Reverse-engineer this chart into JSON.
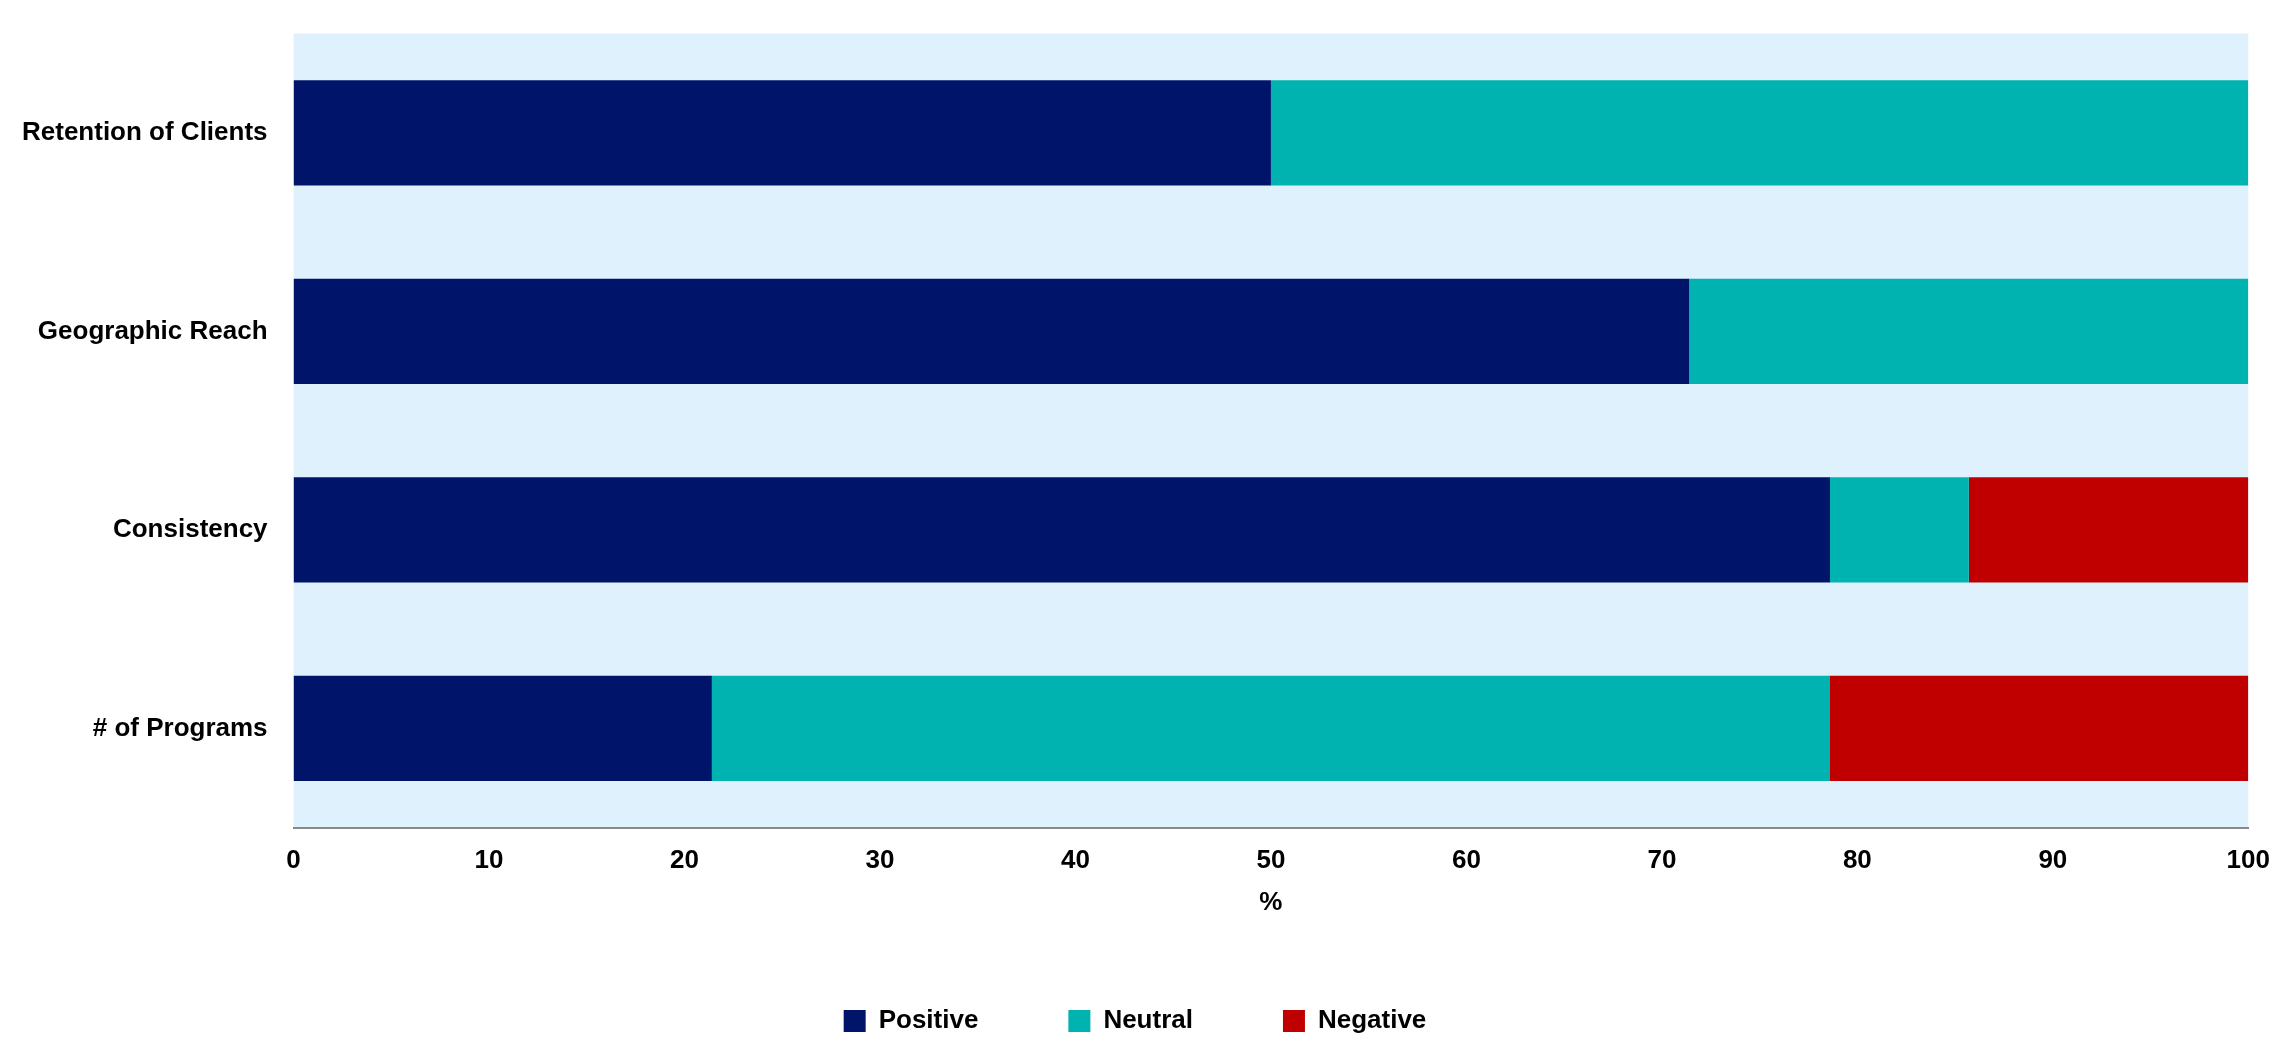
{
  "chart_data": {
    "type": "bar",
    "orientation": "horizontal",
    "stacked": true,
    "xlabel": "%",
    "categories": [
      "Retention of Clients",
      "Geographic Reach",
      "Consistency",
      "# of Programs"
    ],
    "series": [
      {
        "name": "Positive",
        "color": "#00156a",
        "values": [
          50,
          71.4,
          78.6,
          21.4
        ]
      },
      {
        "name": "Neutral",
        "color": "#00b2b0",
        "values": [
          50,
          28.6,
          7.1,
          57.2
        ]
      },
      {
        "name": "Negative",
        "color": "#c00000",
        "values": [
          0,
          0,
          14.3,
          21.4
        ]
      }
    ],
    "xlim": [
      0,
      100
    ],
    "xticks": [
      0,
      10,
      20,
      30,
      40,
      50,
      60,
      70,
      80,
      90,
      100
    ],
    "grid": false,
    "legend": "bottom"
  }
}
